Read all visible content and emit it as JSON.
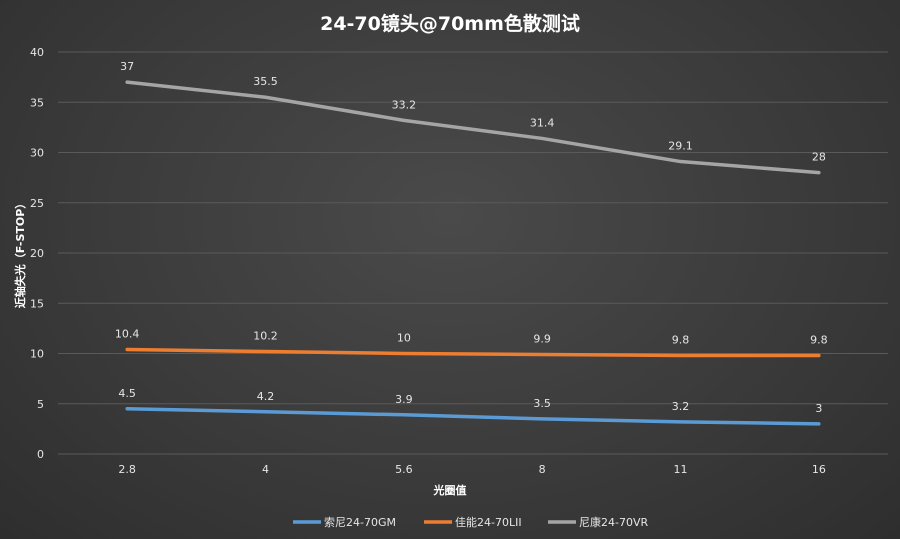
{
  "chart_data": {
    "type": "line",
    "title": "24-70镜头@70mm色散测试",
    "xlabel": "光圈值",
    "ylabel": "近轴失光（F-STOP）",
    "categories": [
      "2.8",
      "4",
      "5.6",
      "8",
      "11",
      "16"
    ],
    "ylim": [
      0,
      40
    ],
    "yticks": [
      0,
      5,
      10,
      15,
      20,
      25,
      30,
      35,
      40
    ],
    "grid": true,
    "legend": "bottom",
    "series": [
      {
        "name": "索尼24-70GM",
        "color": "#5b9bd5",
        "values": [
          4.5,
          4.2,
          3.9,
          3.5,
          3.2,
          3
        ]
      },
      {
        "name": "佳能24-70LII",
        "color": "#ed7d31",
        "values": [
          10.4,
          10.2,
          10,
          9.9,
          9.8,
          9.8
        ]
      },
      {
        "name": "尼康24-70VR",
        "color": "#a5a5a5",
        "values": [
          37,
          35.5,
          33.2,
          31.4,
          29.1,
          28
        ]
      }
    ]
  }
}
